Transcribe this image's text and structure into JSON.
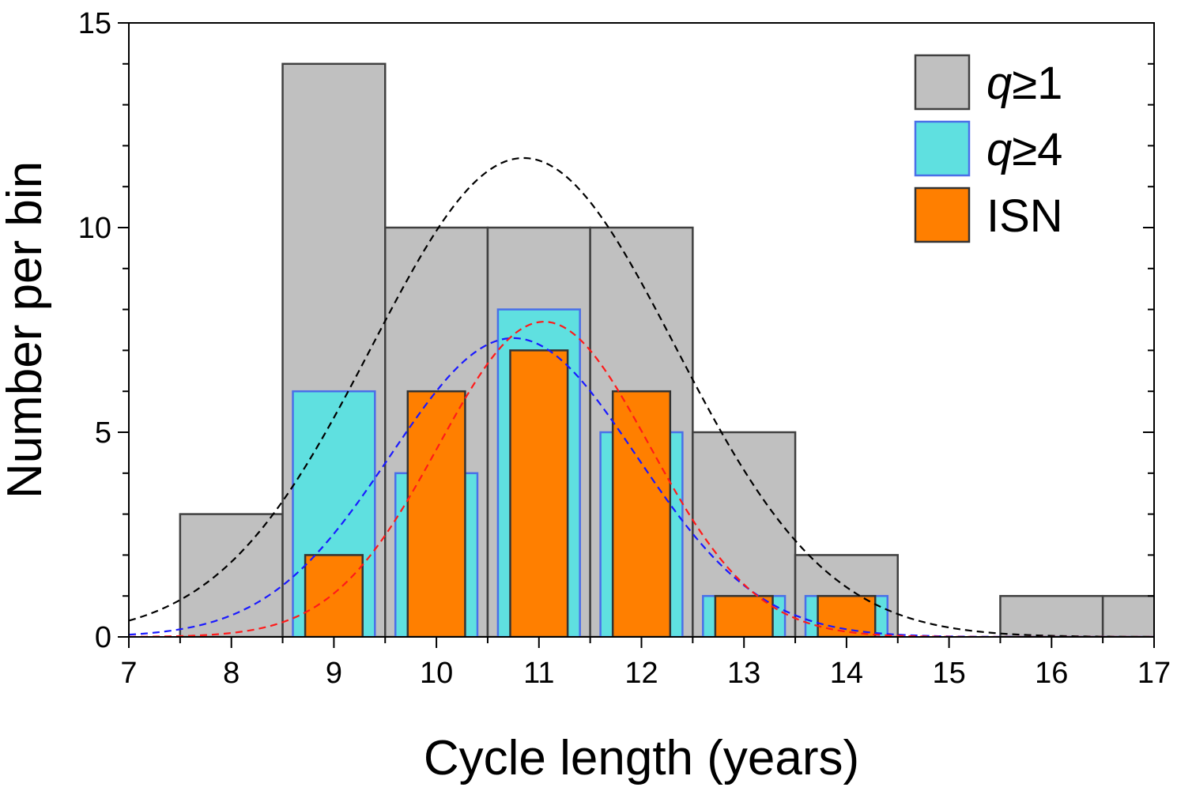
{
  "chart_data": {
    "type": "bar",
    "xlabel": "Cycle length (years)",
    "ylabel": "Number per bin",
    "xlim": [
      7,
      17
    ],
    "ylim": [
      0,
      15
    ],
    "x_ticks": [
      7,
      8,
      9,
      10,
      11,
      12,
      13,
      14,
      15,
      16,
      17
    ],
    "y_ticks": [
      0,
      5,
      10,
      15
    ],
    "grid": false,
    "legend_position": "top-right",
    "series": [
      {
        "name_parts": [
          "q",
          "≥1"
        ],
        "color": "#c0c0c0",
        "edge_color": "#404040",
        "bins": [
          {
            "x0": 7.5,
            "x1": 8.5,
            "count": 3
          },
          {
            "x0": 8.5,
            "x1": 9.5,
            "count": 14
          },
          {
            "x0": 9.5,
            "x1": 10.5,
            "count": 10
          },
          {
            "x0": 10.5,
            "x1": 11.5,
            "count": 10
          },
          {
            "x0": 11.5,
            "x1": 12.5,
            "count": 10
          },
          {
            "x0": 12.5,
            "x1": 13.5,
            "count": 5
          },
          {
            "x0": 13.5,
            "x1": 14.5,
            "count": 2
          },
          {
            "x0": 15.5,
            "x1": 16.5,
            "count": 1
          },
          {
            "x0": 16.5,
            "x1": 17.5,
            "count": 1
          }
        ],
        "fit": {
          "type": "gaussian",
          "amplitude": 11.7,
          "mean": 10.85,
          "sigma": 1.48,
          "color": "#000000"
        }
      },
      {
        "name_parts": [
          "q",
          "≥4"
        ],
        "color": "#5fe0e0",
        "edge_color": "#4a6fe8",
        "bins": [
          {
            "x0": 8.6,
            "x1": 9.4,
            "count": 6
          },
          {
            "x0": 9.6,
            "x1": 10.4,
            "count": 4
          },
          {
            "x0": 10.6,
            "x1": 11.4,
            "count": 8
          },
          {
            "x0": 11.6,
            "x1": 12.4,
            "count": 5
          },
          {
            "x0": 12.6,
            "x1": 13.4,
            "count": 1
          },
          {
            "x0": 13.6,
            "x1": 14.4,
            "count": 1
          }
        ],
        "fit": {
          "type": "gaussian",
          "amplitude": 7.3,
          "mean": 10.75,
          "sigma": 1.2,
          "color": "#1a1aff"
        }
      },
      {
        "name_parts": [
          "ISN"
        ],
        "color": "#ff7f00",
        "edge_color": "#333333",
        "bins": [
          {
            "x0": 8.72,
            "x1": 9.28,
            "count": 2
          },
          {
            "x0": 9.72,
            "x1": 10.28,
            "count": 6
          },
          {
            "x0": 10.72,
            "x1": 11.28,
            "count": 7
          },
          {
            "x0": 11.72,
            "x1": 12.28,
            "count": 6
          },
          {
            "x0": 12.72,
            "x1": 13.28,
            "count": 1
          },
          {
            "x0": 13.72,
            "x1": 14.28,
            "count": 1
          }
        ],
        "fit": {
          "type": "gaussian",
          "amplitude": 7.7,
          "mean": 11.05,
          "sigma": 1.03,
          "color": "#ff1a1a"
        }
      }
    ]
  }
}
